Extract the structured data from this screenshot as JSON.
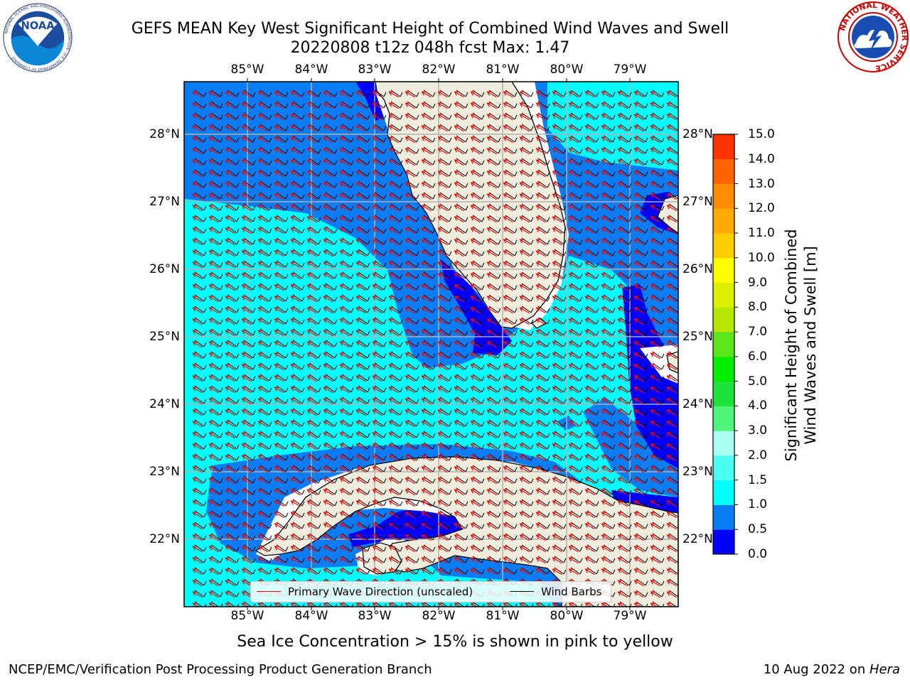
{
  "header": {
    "title_line1": "GEFS MEAN Key West Significant Height of Combined Wind Waves and Swell",
    "title_line2": "20220808 t12z 048h fcst   Max: 1.47"
  },
  "logos": {
    "noaa": {
      "text": "NOAA",
      "ring_text": "NATIONAL OCEANIC AND ATMOSPHERIC ADMINISTRATION · U.S. DEPARTMENT OF COMMERCE"
    },
    "nws": {
      "ring_text": "NATIONAL WEATHER SERVICE"
    }
  },
  "map": {
    "lon_labels": [
      "85°W",
      "84°W",
      "83°W",
      "82°W",
      "81°W",
      "80°W",
      "79°W"
    ],
    "lat_labels": [
      "28°N",
      "27°N",
      "26°N",
      "25°N",
      "24°N",
      "23°N",
      "22°N"
    ],
    "extent": {
      "lon": [
        -86.0,
        -78.3
      ],
      "lat": [
        21.0,
        28.8
      ]
    },
    "land_color": "#eeecdc",
    "gridline_color": "#b0b0b0",
    "wave_direction_color": "#ff0000",
    "wind_barb_color": "#000000",
    "wave_direction_deg_toward": 300,
    "wind_barb_from": "southeast"
  },
  "colorbar": {
    "label_line1": "Significant Height of Combined",
    "label_line2": "Wind Waves and Swell [m]",
    "ticks": [
      "0.0",
      "0.5",
      "1.0",
      "1.5",
      "2.0",
      "3.0",
      "4.0",
      "5.0",
      "6.0",
      "7.0",
      "8.0",
      "9.0",
      "10.0",
      "11.0",
      "12.0",
      "13.0",
      "14.0",
      "15.0"
    ],
    "bins": [
      {
        "range": "0.0-0.5",
        "color": "#0000ff"
      },
      {
        "range": "0.5-1.0",
        "color": "#0a7df5"
      },
      {
        "range": "1.0-1.5",
        "color": "#00ffff"
      },
      {
        "range": "1.5-2.0",
        "color": "#4dfff2"
      },
      {
        "range": "2.0-3.0",
        "color": "#a8fff0"
      },
      {
        "range": "3.0-4.0",
        "color": "#4ff57a"
      },
      {
        "range": "4.0-5.0",
        "color": "#1ee23c"
      },
      {
        "range": "5.0-6.0",
        "color": "#00ee00"
      },
      {
        "range": "6.0-7.0",
        "color": "#5ae61a"
      },
      {
        "range": "7.0-8.0",
        "color": "#b4e600"
      },
      {
        "range": "8.0-9.0",
        "color": "#dcf000"
      },
      {
        "range": "9.0-10.0",
        "color": "#ffff00"
      },
      {
        "range": "10.0-11.0",
        "color": "#ffcc00"
      },
      {
        "range": "11.0-12.0",
        "color": "#ffaa00"
      },
      {
        "range": "12.0-13.0",
        "color": "#ff8c00"
      },
      {
        "range": "13.0-14.0",
        "color": "#ff6400"
      },
      {
        "range": "14.0-15.0",
        "color": "#ff3200"
      },
      {
        "range": "> 15.0",
        "color": "#ff0000"
      }
    ]
  },
  "legend": {
    "wave_label": "Primary Wave Direction (unscaled)",
    "wind_label": "Wind Barbs"
  },
  "footer": {
    "note": "Sea Ice Concentration > 15% is shown in pink to yellow",
    "left": "NCEP/EMC/Verification Post Processing Product Generation Branch",
    "right_date": "10 Aug 2022 on ",
    "right_host": "Hera"
  }
}
